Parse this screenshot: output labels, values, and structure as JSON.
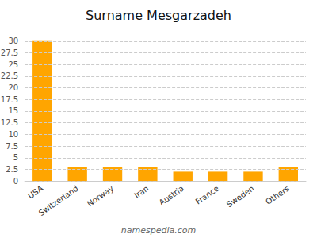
{
  "chart_data": {
    "type": "bar",
    "title": "Surname Mesgarzadeh",
    "categories": [
      "USA",
      "Switzerland",
      "Norway",
      "Iran",
      "Austria",
      "France",
      "Sweden",
      "Others"
    ],
    "values": [
      30,
      3,
      3,
      3,
      2,
      2,
      2,
      3
    ],
    "color": "#FFA500",
    "ylim": [
      0,
      32
    ],
    "yticks": [
      0,
      2.5,
      5,
      7.5,
      10,
      12.5,
      15,
      17.5,
      20,
      22.5,
      25,
      27.5,
      30
    ],
    "grid": true,
    "annotations": [
      "namespedia.com"
    ]
  }
}
